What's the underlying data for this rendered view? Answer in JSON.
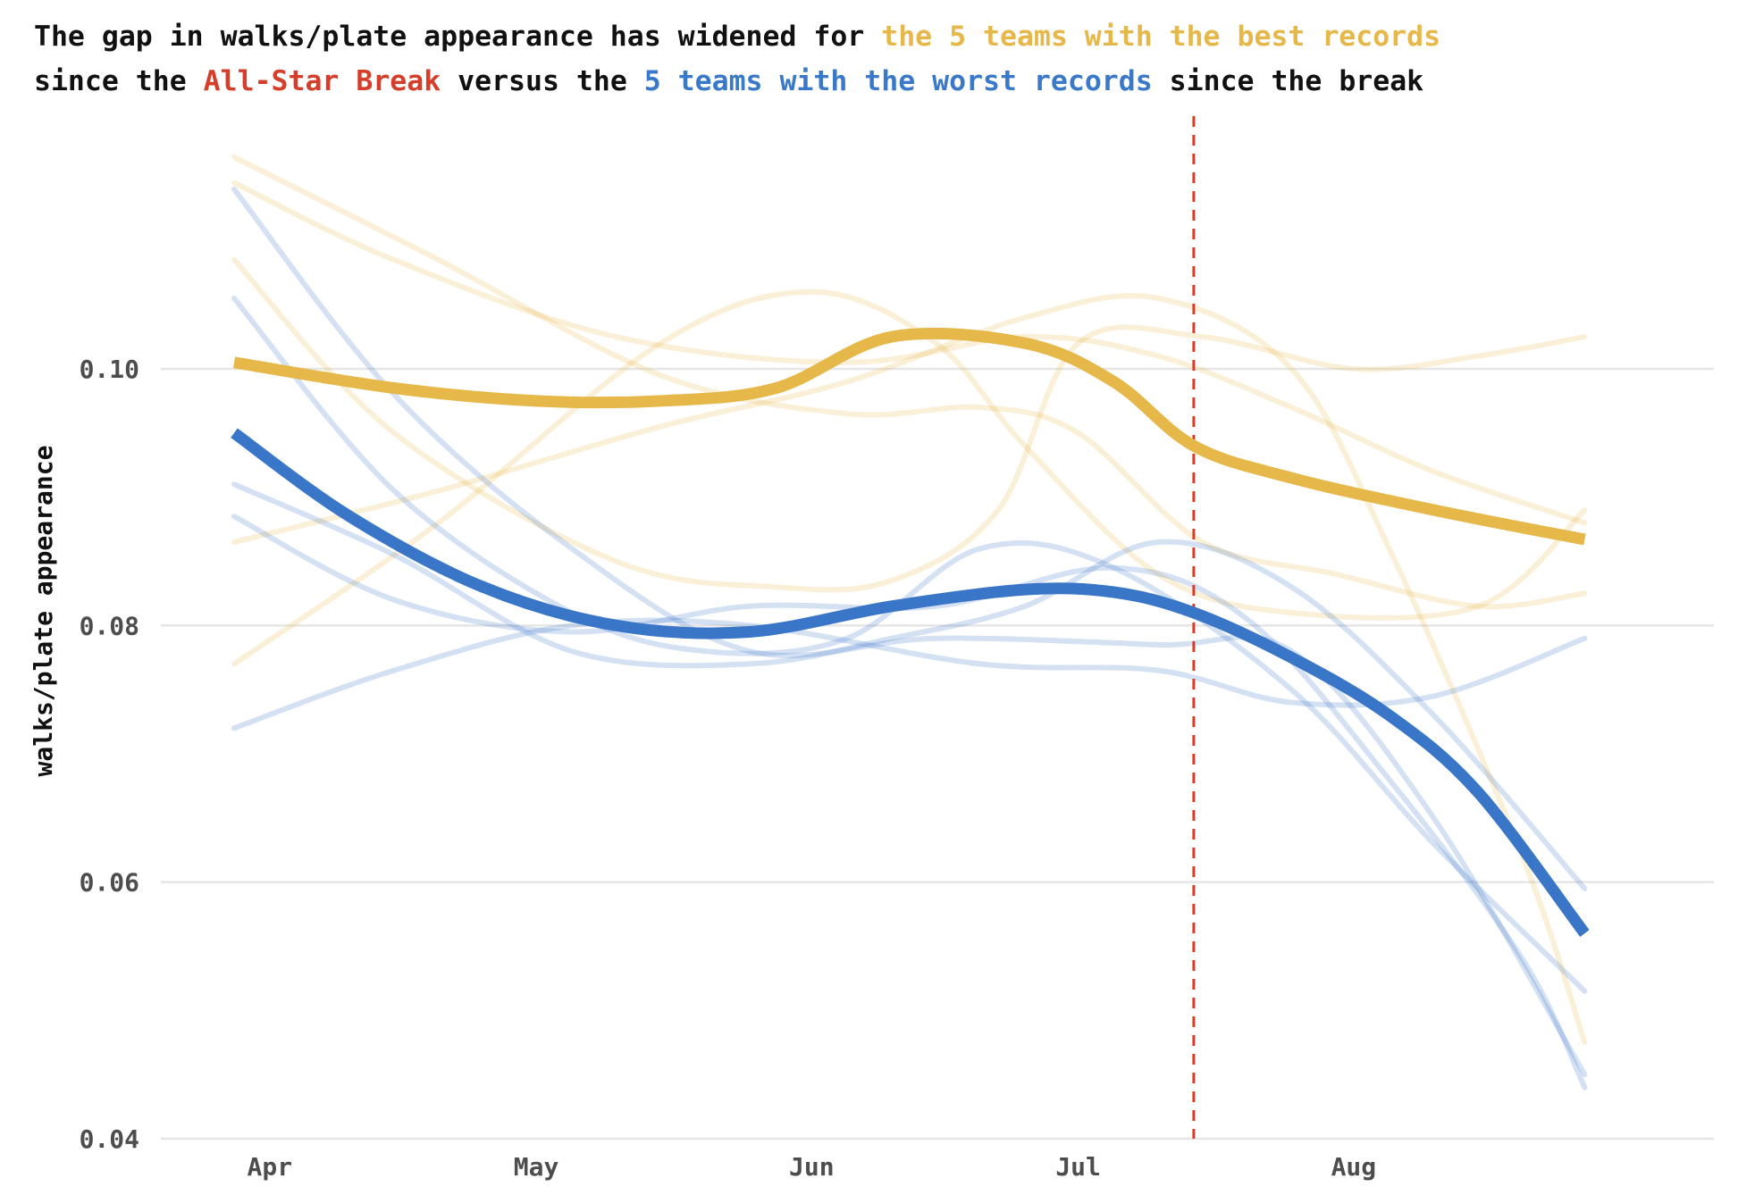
{
  "title": {
    "line1": [
      {
        "text": "The gap in walks/plate appearance has widened for ",
        "color": "#111111"
      },
      {
        "text": "the 5 teams with the best records",
        "color": "#e6b84a"
      }
    ],
    "line2": [
      {
        "text": "since the ",
        "color": "#111111"
      },
      {
        "text": "All-Star Break",
        "color": "#d53e2a"
      },
      {
        "text": " versus the ",
        "color": "#111111"
      },
      {
        "text": "5 teams with the worst records",
        "color": "#3a79c9"
      },
      {
        "text": " since the break",
        "color": "#111111"
      }
    ]
  },
  "colors": {
    "best": "#e6b84a",
    "worst": "#3a76c8",
    "break_line": "#d53e2a",
    "grid": "#e6e6e6"
  },
  "chart_data": {
    "type": "line",
    "ylabel": "walks/plate appearance",
    "xlabel": "",
    "x_ticks": [
      {
        "label": "Apr",
        "x": "2019-04-01"
      },
      {
        "label": "May",
        "x": "2019-05-01"
      },
      {
        "label": "Jun",
        "x": "2019-06-01"
      },
      {
        "label": "Jul",
        "x": "2019-07-01"
      },
      {
        "label": "Aug",
        "x": "2019-08-01"
      }
    ],
    "xlim": [
      "2019-03-28",
      "2019-09-03"
    ],
    "y_ticks": [
      0.04,
      0.06,
      0.08,
      0.1
    ],
    "ylim": [
      0.04,
      0.1045
    ],
    "grid": true,
    "vline": {
      "x": "2019-07-14",
      "style": "dashed"
    },
    "series": [
      {
        "group": "best",
        "values": [
          [
            "2019-03-28",
            0.1145
          ],
          [
            "2019-04-15",
            0.1085
          ],
          [
            "2019-05-10",
            0.1025
          ],
          [
            "2019-06-05",
            0.1005
          ],
          [
            "2019-06-25",
            0.1025
          ],
          [
            "2019-07-10",
            0.101
          ],
          [
            "2019-07-25",
            0.097
          ],
          [
            "2019-08-10",
            0.092
          ],
          [
            "2019-08-27",
            0.088
          ]
        ]
      },
      {
        "group": "best",
        "values": [
          [
            "2019-03-28",
            0.1165
          ],
          [
            "2019-04-20",
            0.1085
          ],
          [
            "2019-05-15",
            0.0995
          ],
          [
            "2019-06-05",
            0.0965
          ],
          [
            "2019-06-20",
            0.097
          ],
          [
            "2019-07-01",
            0.095
          ],
          [
            "2019-07-15",
            0.0865
          ],
          [
            "2019-07-30",
            0.084
          ],
          [
            "2019-08-15",
            0.0815
          ],
          [
            "2019-08-27",
            0.0825
          ]
        ]
      },
      {
        "group": "best",
        "values": [
          [
            "2019-03-28",
            0.1085
          ],
          [
            "2019-04-15",
            0.095
          ],
          [
            "2019-05-10",
            0.085
          ],
          [
            "2019-05-28",
            0.083
          ],
          [
            "2019-06-10",
            0.0835
          ],
          [
            "2019-06-22",
            0.089
          ],
          [
            "2019-07-01",
            0.102
          ],
          [
            "2019-07-15",
            0.1025
          ],
          [
            "2019-08-01",
            0.1
          ],
          [
            "2019-08-15",
            0.101
          ],
          [
            "2019-08-27",
            0.1025
          ]
        ]
      },
      {
        "group": "best",
        "values": [
          [
            "2019-03-28",
            0.0865
          ],
          [
            "2019-04-20",
            0.0905
          ],
          [
            "2019-05-15",
            0.0955
          ],
          [
            "2019-06-05",
            0.099
          ],
          [
            "2019-06-25",
            0.104
          ],
          [
            "2019-07-10",
            0.1055
          ],
          [
            "2019-07-25",
            0.1
          ],
          [
            "2019-08-05",
            0.086
          ],
          [
            "2019-08-20",
            0.062
          ],
          [
            "2019-08-27",
            0.0475
          ]
        ]
      },
      {
        "group": "best",
        "values": [
          [
            "2019-03-28",
            0.077
          ],
          [
            "2019-04-20",
            0.088
          ],
          [
            "2019-05-15",
            0.102
          ],
          [
            "2019-06-01",
            0.106
          ],
          [
            "2019-06-15",
            0.102
          ],
          [
            "2019-06-25",
            0.094
          ],
          [
            "2019-07-10",
            0.084
          ],
          [
            "2019-07-25",
            0.081
          ],
          [
            "2019-08-15",
            0.0815
          ],
          [
            "2019-08-27",
            0.089
          ]
        ]
      },
      {
        "group": "worst",
        "values": [
          [
            "2019-03-28",
            0.114
          ],
          [
            "2019-04-15",
            0.098
          ],
          [
            "2019-05-05",
            0.086
          ],
          [
            "2019-05-25",
            0.078
          ],
          [
            "2019-06-15",
            0.079
          ],
          [
            "2019-07-10",
            0.0785
          ],
          [
            "2019-07-25",
            0.078
          ],
          [
            "2019-08-10",
            0.065
          ],
          [
            "2019-08-27",
            0.045
          ]
        ]
      },
      {
        "group": "worst",
        "values": [
          [
            "2019-03-28",
            0.1055
          ],
          [
            "2019-04-15",
            0.0905
          ],
          [
            "2019-05-05",
            0.081
          ],
          [
            "2019-05-20",
            0.078
          ],
          [
            "2019-06-05",
            0.079
          ],
          [
            "2019-06-20",
            0.086
          ],
          [
            "2019-07-05",
            0.0845
          ],
          [
            "2019-07-25",
            0.075
          ],
          [
            "2019-08-10",
            0.063
          ],
          [
            "2019-08-27",
            0.0515
          ]
        ]
      },
      {
        "group": "worst",
        "values": [
          [
            "2019-03-28",
            0.091
          ],
          [
            "2019-04-15",
            0.0855
          ],
          [
            "2019-05-05",
            0.078
          ],
          [
            "2019-05-25",
            0.077
          ],
          [
            "2019-06-10",
            0.079
          ],
          [
            "2019-06-25",
            0.0815
          ],
          [
            "2019-07-10",
            0.0865
          ],
          [
            "2019-07-25",
            0.083
          ],
          [
            "2019-08-10",
            0.073
          ],
          [
            "2019-08-27",
            0.0595
          ]
        ]
      },
      {
        "group": "worst",
        "values": [
          [
            "2019-03-28",
            0.0885
          ],
          [
            "2019-04-15",
            0.082
          ],
          [
            "2019-05-05",
            0.0795
          ],
          [
            "2019-05-25",
            0.0815
          ],
          [
            "2019-06-15",
            0.0815
          ],
          [
            "2019-07-05",
            0.0845
          ],
          [
            "2019-07-20",
            0.0805
          ],
          [
            "2019-08-05",
            0.068
          ],
          [
            "2019-08-20",
            0.054
          ],
          [
            "2019-08-27",
            0.044
          ]
        ]
      },
      {
        "group": "worst",
        "values": [
          [
            "2019-03-28",
            0.072
          ],
          [
            "2019-04-15",
            0.0765
          ],
          [
            "2019-05-05",
            0.08
          ],
          [
            "2019-05-25",
            0.08
          ],
          [
            "2019-06-20",
            0.077
          ],
          [
            "2019-07-10",
            0.0765
          ],
          [
            "2019-07-25",
            0.074
          ],
          [
            "2019-08-10",
            0.0745
          ],
          [
            "2019-08-27",
            0.079
          ]
        ]
      },
      {
        "group": "best",
        "highlight": true,
        "values": [
          [
            "2019-03-28",
            0.1005
          ],
          [
            "2019-04-15",
            0.0985
          ],
          [
            "2019-05-01",
            0.0975
          ],
          [
            "2019-05-15",
            0.0975
          ],
          [
            "2019-05-28",
            0.0985
          ],
          [
            "2019-06-10",
            0.1025
          ],
          [
            "2019-06-25",
            0.102
          ],
          [
            "2019-07-05",
            0.099
          ],
          [
            "2019-07-14",
            0.094
          ],
          [
            "2019-07-25",
            0.0915
          ],
          [
            "2019-08-10",
            0.089
          ],
          [
            "2019-08-27",
            0.0867
          ]
        ]
      },
      {
        "group": "worst",
        "highlight": true,
        "values": [
          [
            "2019-03-28",
            0.095
          ],
          [
            "2019-04-10",
            0.0885
          ],
          [
            "2019-04-25",
            0.083
          ],
          [
            "2019-05-10",
            0.08
          ],
          [
            "2019-05-25",
            0.0795
          ],
          [
            "2019-06-10",
            0.0815
          ],
          [
            "2019-06-25",
            0.0828
          ],
          [
            "2019-07-05",
            0.0826
          ],
          [
            "2019-07-14",
            0.081
          ],
          [
            "2019-07-25",
            0.0775
          ],
          [
            "2019-08-05",
            0.073
          ],
          [
            "2019-08-15",
            0.067
          ],
          [
            "2019-08-27",
            0.056
          ]
        ]
      }
    ]
  }
}
